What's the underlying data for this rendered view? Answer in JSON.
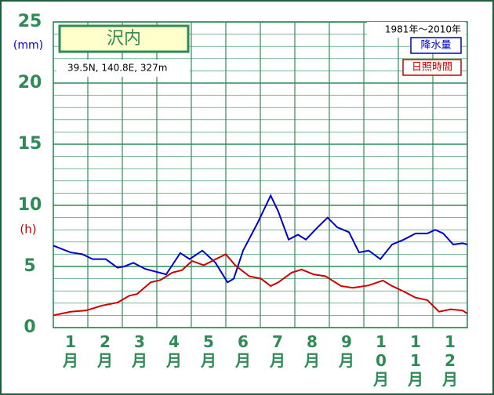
{
  "chart_data": {
    "type": "line",
    "title": "沢内",
    "subtitle": "39.5N, 140.8E, 327m",
    "period": "1981年～2010年",
    "y_label": "(mm)",
    "y_label_2": "(h)",
    "categories": [
      "1月",
      "2月",
      "3月",
      "4月",
      "5月",
      "6月",
      "7月",
      "8月",
      "9月",
      "10月",
      "11月",
      "12月"
    ],
    "xlim": [
      0,
      12
    ],
    "xticks": [
      0,
      1,
      2,
      3,
      4,
      5,
      6,
      7,
      8,
      9,
      10,
      11,
      12
    ],
    "ylim": [
      0,
      25
    ],
    "yticks": [
      0,
      5,
      10,
      15,
      20,
      25
    ],
    "minor_yticks": [
      1,
      2,
      3,
      4,
      6,
      7,
      8,
      9,
      11,
      12,
      13,
      14,
      16,
      17,
      18,
      19,
      21,
      22,
      23,
      24
    ],
    "grid": true,
    "legend": "upper right",
    "series": [
      {
        "name": "降水量",
        "color": "#0000cc",
        "x": [
          0,
          0.5,
          0.84,
          1.14,
          1.52,
          1.86,
          2.05,
          2.32,
          2.66,
          3.0,
          3.27,
          3.68,
          3.95,
          4.32,
          4.7,
          5.05,
          5.23,
          5.5,
          5.91,
          6.3,
          6.52,
          6.82,
          7.09,
          7.32,
          7.66,
          7.95,
          8.23,
          8.57,
          8.86,
          9.14,
          9.48,
          9.82,
          10.16,
          10.5,
          10.84,
          11.07,
          11.3,
          11.59,
          11.86,
          12
        ],
        "values": [
          6.7,
          6.15,
          6.0,
          5.6,
          5.6,
          4.9,
          5.0,
          5.3,
          4.8,
          4.55,
          4.35,
          6.1,
          5.6,
          6.3,
          5.3,
          3.7,
          4.0,
          6.3,
          8.5,
          10.8,
          9.5,
          7.2,
          7.6,
          7.2,
          8.2,
          9.0,
          8.2,
          7.8,
          6.15,
          6.3,
          5.6,
          6.8,
          7.2,
          7.7,
          7.7,
          8.0,
          7.7,
          6.8,
          6.9,
          6.8
        ]
      },
      {
        "name": "日照時間",
        "color": "#cc0000",
        "x": [
          0,
          0.5,
          0.95,
          1.41,
          1.86,
          2.2,
          2.43,
          2.82,
          3.11,
          3.45,
          3.73,
          4.02,
          4.36,
          4.64,
          5.0,
          5.27,
          5.68,
          6.02,
          6.3,
          6.52,
          6.91,
          7.2,
          7.55,
          7.89,
          8.34,
          8.68,
          9.14,
          9.55,
          9.82,
          10.16,
          10.5,
          10.84,
          11.18,
          11.52,
          11.86,
          12
        ],
        "values": [
          1.0,
          1.3,
          1.4,
          1.8,
          2.05,
          2.6,
          2.75,
          3.7,
          3.9,
          4.5,
          4.7,
          5.45,
          5.1,
          5.5,
          6.0,
          5.1,
          4.2,
          4.0,
          3.4,
          3.7,
          4.5,
          4.75,
          4.35,
          4.2,
          3.4,
          3.25,
          3.45,
          3.85,
          3.4,
          2.95,
          2.45,
          2.25,
          1.3,
          1.5,
          1.4,
          1.15
        ]
      }
    ]
  }
}
